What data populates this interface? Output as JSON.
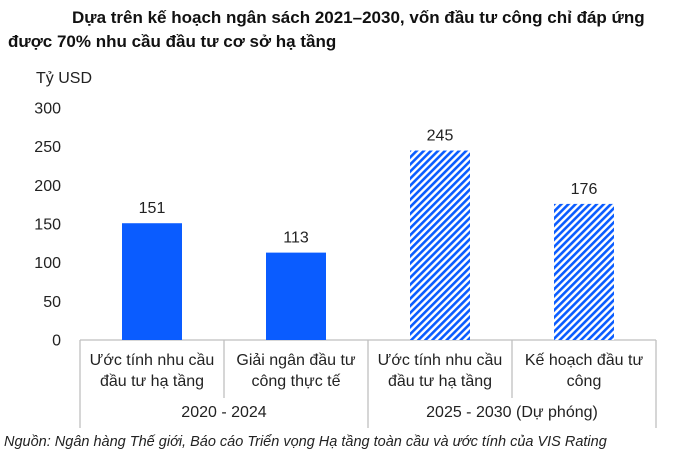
{
  "title_line1": "Dựa trên kế hoạch ngân sách 2021–2030, vốn đầu tư công chỉ đáp ứng",
  "title_line2": "được 70% nhu cầu đầu tư cơ sở hạ tầng",
  "unit_label": "Tỷ USD",
  "source": "Nguồn: Ngân hàng Thế giới, Báo cáo Triển vọng Hạ tầng toàn cầu và ước tính của VIS Rating",
  "colors": {
    "solid_bar": "#0A5CFF",
    "hatched_bar": "#0A5CFF",
    "axis": "#bfbfbf",
    "text": "#1a1a1a"
  },
  "chart_data": {
    "type": "bar",
    "ylabel": "Tỷ USD",
    "ylim": [
      0,
      300
    ],
    "yticks": [
      0,
      50,
      100,
      150,
      200,
      250,
      300
    ],
    "grid": false,
    "categories": [
      [
        "Ước tính nhu cầu",
        "đầu tư hạ tầng"
      ],
      [
        "Giải ngân đầu tư",
        "công thực tế"
      ],
      [
        "Ước tính nhu cầu",
        "đầu tư hạ tầng"
      ],
      [
        "Kế hoạch đầu tư",
        "công"
      ]
    ],
    "values": [
      151,
      113,
      245,
      176
    ],
    "styles": [
      "solid",
      "solid",
      "hatched",
      "hatched"
    ],
    "groups": [
      {
        "label": "2020 - 2024",
        "start": 0,
        "end": 1
      },
      {
        "label": "2025 - 2030 (Dự phóng)",
        "start": 2,
        "end": 3
      }
    ]
  }
}
